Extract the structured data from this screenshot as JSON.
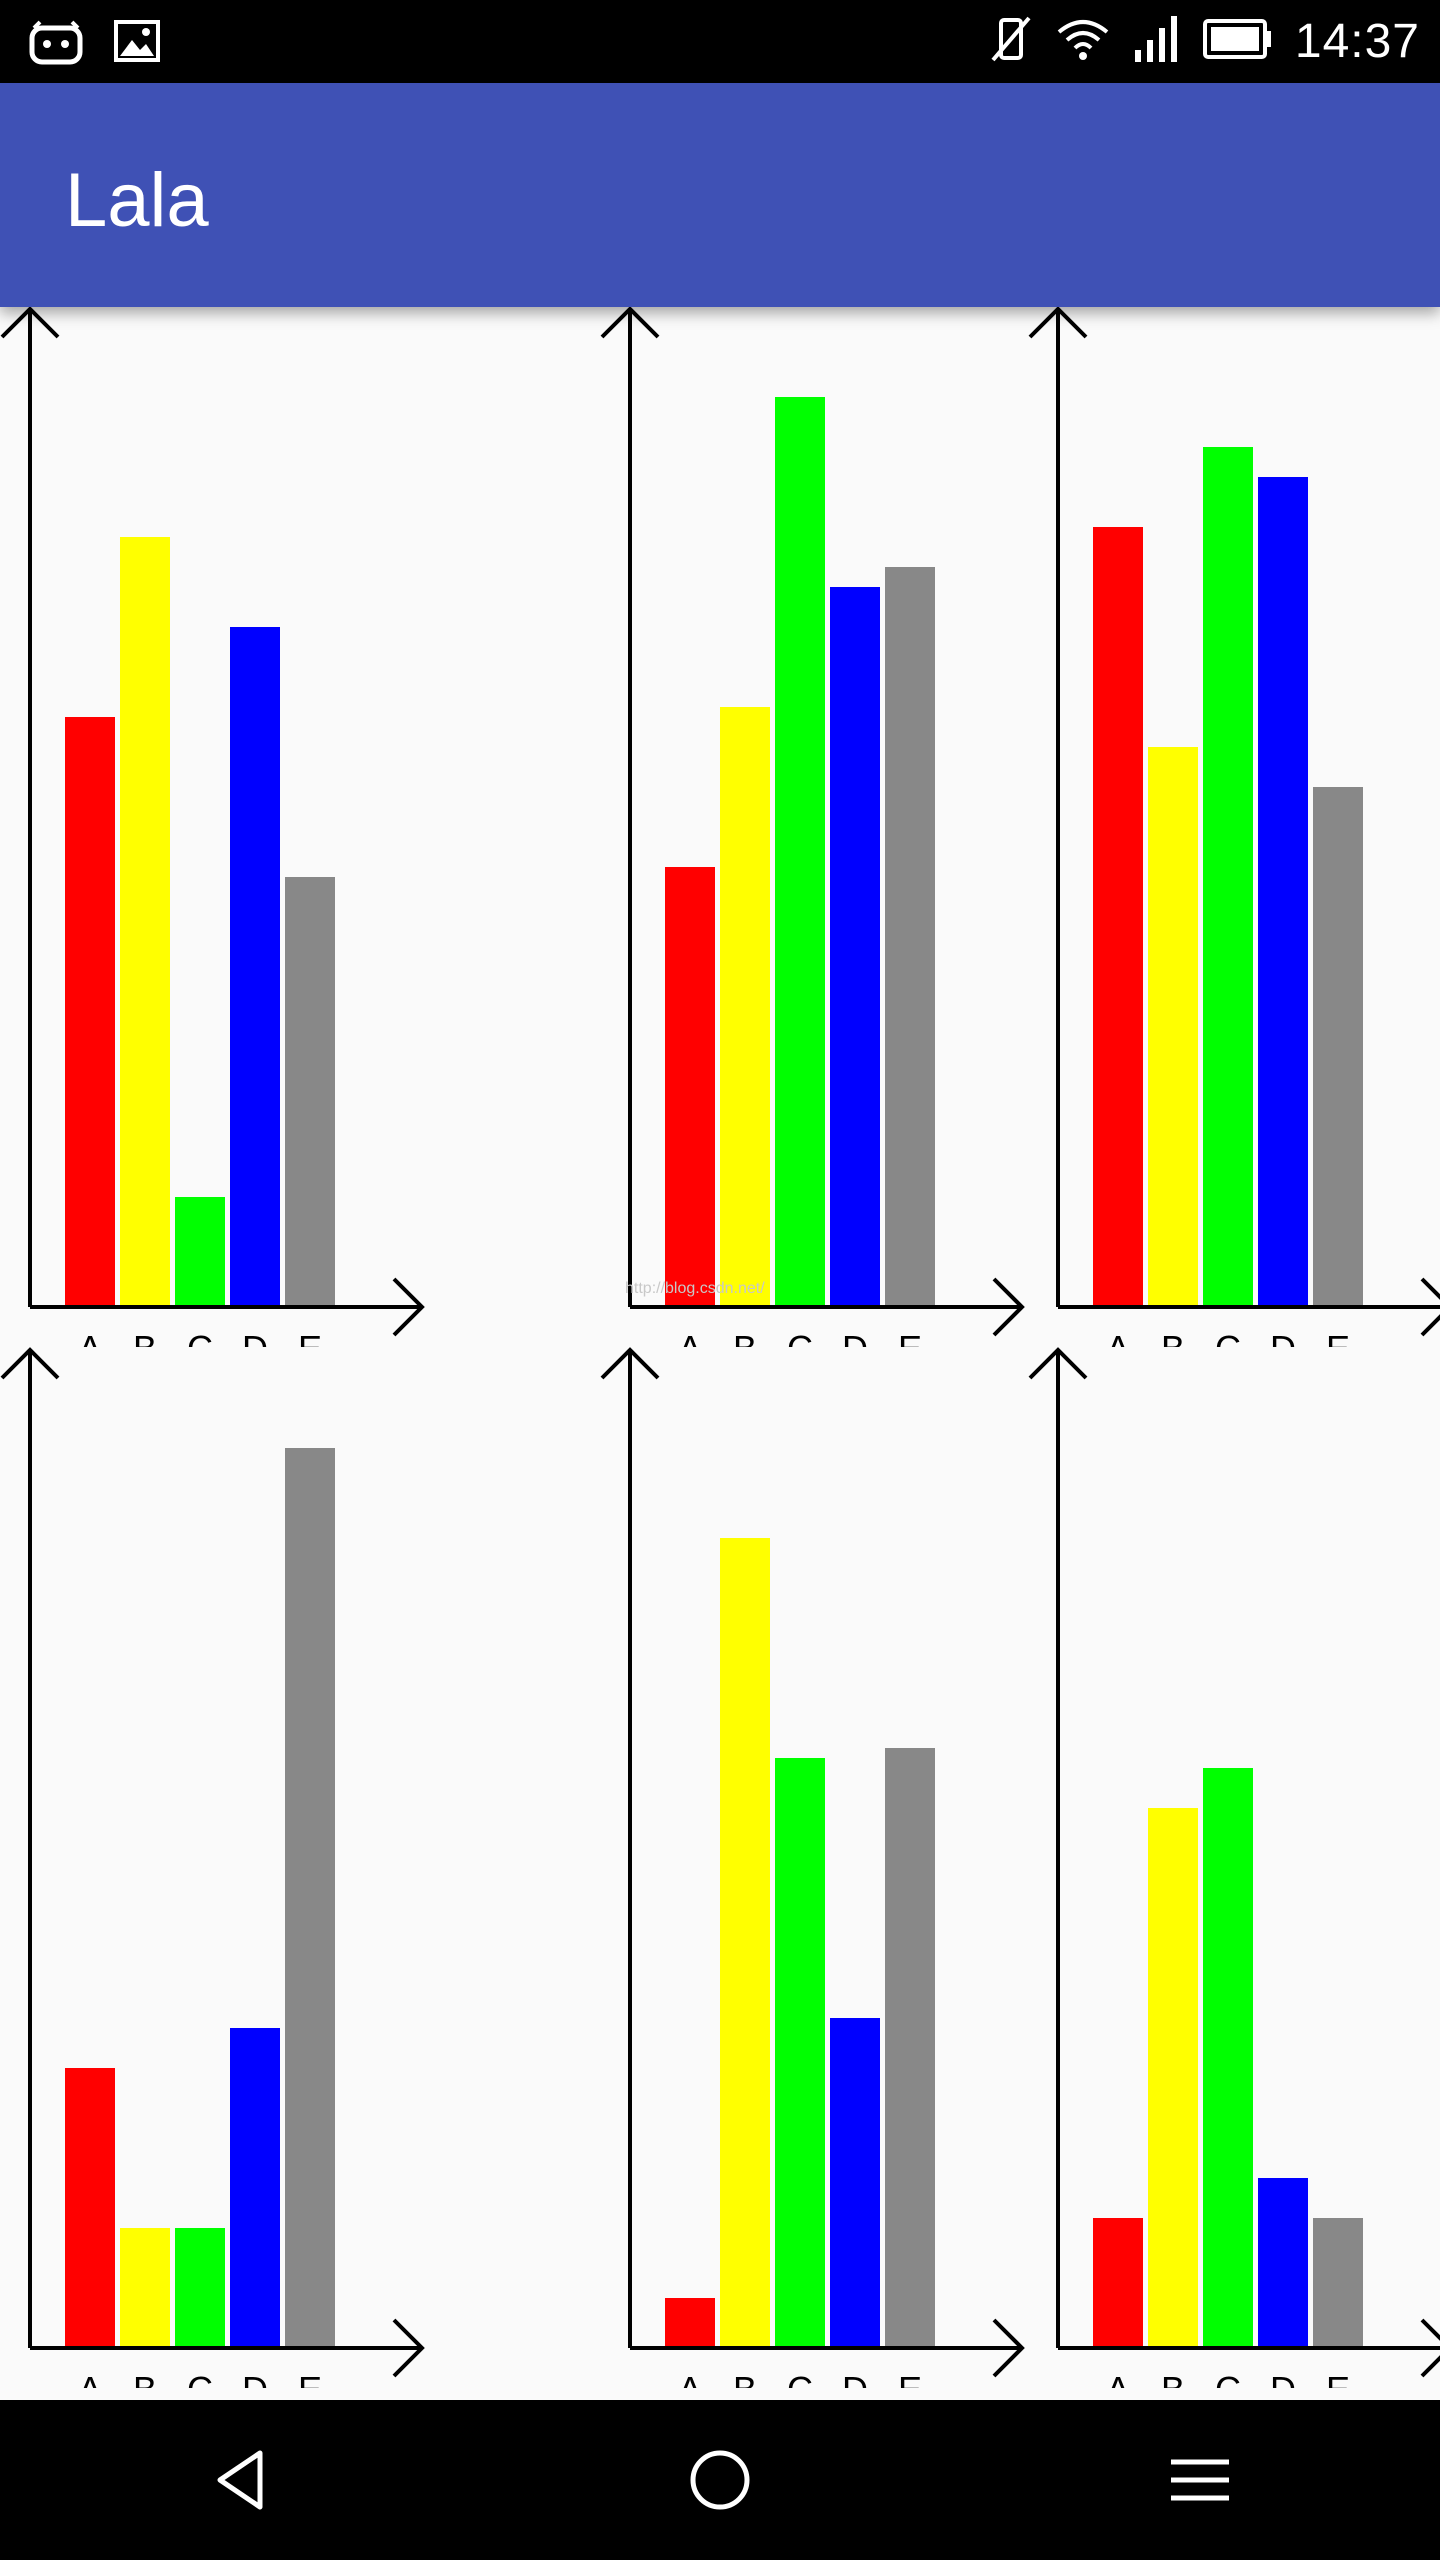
{
  "status_bar": {
    "time": "14:37",
    "left_icons": [
      "android-debug-icon",
      "image-notification-icon"
    ],
    "right_icons": [
      "vibrate-off-icon",
      "wifi-icon",
      "signal-icon",
      "battery-icon"
    ]
  },
  "app_bar": {
    "title": "Lala"
  },
  "colors": {
    "primary": "#3f51b5",
    "bar_colors": [
      "#ff0000",
      "#ffff00",
      "#00ff00",
      "#0000ff",
      "#888888"
    ]
  },
  "watermark": "http://blog.csdn.net/",
  "chart_data": [
    {
      "type": "bar",
      "categories": [
        "A",
        "B",
        "C",
        "D",
        "E"
      ],
      "values": [
        59,
        77,
        11,
        68,
        43
      ],
      "ylim": [
        0,
        100
      ]
    },
    {
      "type": "bar",
      "categories": [
        "A",
        "B",
        "C",
        "D",
        "E"
      ],
      "values": [
        44,
        60,
        91,
        72,
        74
      ],
      "ylim": [
        0,
        100
      ]
    },
    {
      "type": "bar",
      "categories": [
        "A",
        "B",
        "C",
        "D",
        "E"
      ],
      "values": [
        78,
        56,
        86,
        83,
        52
      ],
      "ylim": [
        0,
        100
      ]
    },
    {
      "type": "bar",
      "categories": [
        "A",
        "B",
        "C",
        "D",
        "E"
      ],
      "values": [
        28,
        12,
        12,
        32,
        90
      ],
      "ylim": [
        0,
        100
      ]
    },
    {
      "type": "bar",
      "categories": [
        "A",
        "B",
        "C",
        "D",
        "E"
      ],
      "values": [
        5,
        81,
        59,
        33,
        60
      ],
      "ylim": [
        0,
        100
      ]
    },
    {
      "type": "bar",
      "categories": [
        "A",
        "B",
        "C",
        "D",
        "E"
      ],
      "values": [
        13,
        54,
        58,
        17,
        13
      ],
      "ylim": [
        0,
        100
      ]
    }
  ],
  "nav_bar": {
    "buttons": [
      "back-icon",
      "home-icon",
      "menu-icon"
    ]
  }
}
